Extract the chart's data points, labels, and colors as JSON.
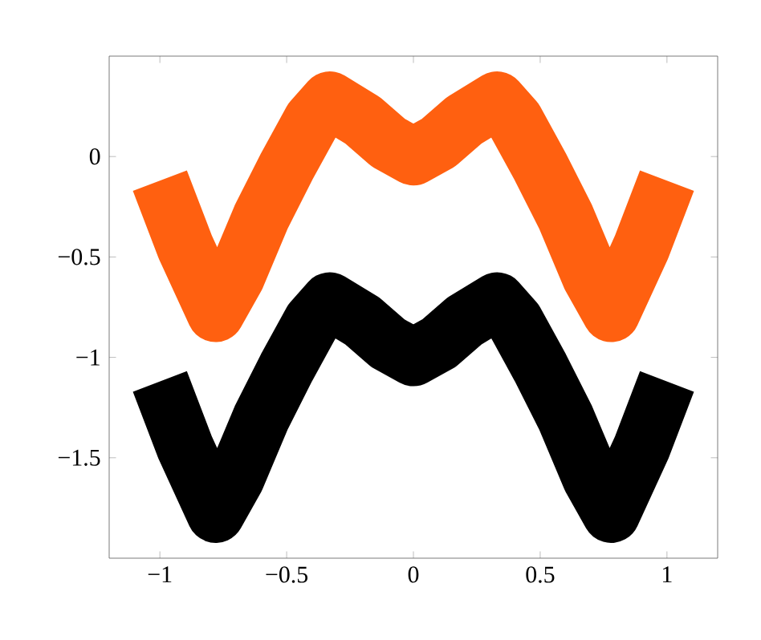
{
  "chart_data": {
    "type": "line",
    "x": [
      -1,
      -0.9,
      -0.78,
      -0.7,
      -0.6,
      -0.5,
      -0.4,
      -0.33,
      -0.2,
      -0.1,
      0,
      0.1,
      0.2,
      0.33,
      0.4,
      0.5,
      0.6,
      0.7,
      0.78,
      0.9,
      1
    ],
    "series": [
      {
        "values": [
          -0.12,
          -0.45,
          -0.78,
          -0.6,
          -0.3,
          -0.05,
          0.18,
          0.28,
          0.18,
          0.07,
          0.0,
          0.07,
          0.18,
          0.28,
          0.18,
          -0.05,
          -0.3,
          -0.6,
          -0.78,
          -0.45,
          -0.12
        ],
        "color": "#ff6010"
      },
      {
        "color": "#000000",
        "values": [
          -1.12,
          -1.45,
          -1.78,
          -1.6,
          -1.3,
          -1.05,
          -0.82,
          -0.72,
          -0.82,
          -0.93,
          -1.0,
          -0.93,
          -0.82,
          -0.72,
          -0.82,
          -1.05,
          -1.3,
          -1.6,
          -1.78,
          -1.45,
          -1.12
        ]
      }
    ],
    "xlim": [
      -1.2,
      1.2
    ],
    "ylim": [
      -2,
      0.5
    ],
    "xticks": [
      {
        "value": -1,
        "label": "−1"
      },
      {
        "value": -0.5,
        "label": "−0.5"
      },
      0,
      0.5,
      1
    ],
    "yticks": [
      {
        "value": -1.5,
        "label": "−1.5"
      },
      {
        "value": -1,
        "label": "−1"
      },
      {
        "value": -0.5,
        "label": "−0.5"
      },
      0
    ]
  }
}
